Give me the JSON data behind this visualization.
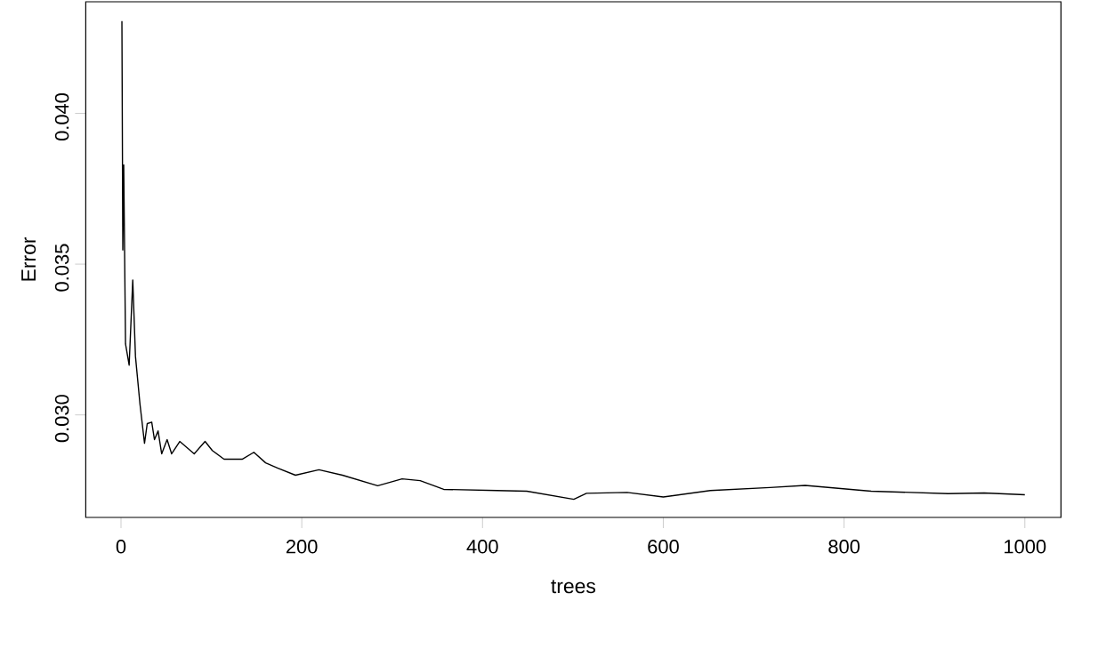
{
  "chart_data": {
    "type": "line",
    "xlabel": "trees",
    "ylabel": "Error",
    "xlim": [
      -39,
      1040
    ],
    "ylim": [
      0.0266,
      0.0437
    ],
    "xticks": [
      0,
      200,
      400,
      600,
      800,
      1000
    ],
    "yticks": [
      {
        "value": 0.03,
        "label": "0.030"
      },
      {
        "value": 0.035,
        "label": "0.035"
      },
      {
        "value": 0.04,
        "label": "0.040"
      }
    ],
    "marker": "none",
    "line_style": "solid",
    "series": [
      {
        "color": "#000000",
        "x": [
          1,
          2,
          3,
          5,
          9,
          13,
          16,
          21,
          26,
          29,
          34,
          37,
          41,
          45,
          51,
          56,
          65,
          81,
          93,
          101,
          114,
          134,
          147,
          160,
          173,
          193,
          219,
          245,
          284,
          311,
          331,
          357,
          416,
          449,
          501,
          515,
          560,
          600,
          652,
          718,
          757,
          830,
          915,
          955,
          1000
        ],
        "values": [
          0.04306,
          0.03547,
          0.03829,
          0.03235,
          0.03165,
          0.03447,
          0.03194,
          0.03035,
          0.02906,
          0.02971,
          0.02976,
          0.02918,
          0.02947,
          0.02871,
          0.02918,
          0.02871,
          0.02912,
          0.02871,
          0.02912,
          0.02882,
          0.02853,
          0.02853,
          0.02876,
          0.02841,
          0.02824,
          0.028,
          0.02818,
          0.028,
          0.02765,
          0.02788,
          0.02782,
          0.02753,
          0.02749,
          0.02747,
          0.0272,
          0.0274,
          0.02743,
          0.02728,
          0.02749,
          0.02759,
          0.02766,
          0.02747,
          0.02739,
          0.02741,
          0.02735
        ]
      }
    ]
  }
}
